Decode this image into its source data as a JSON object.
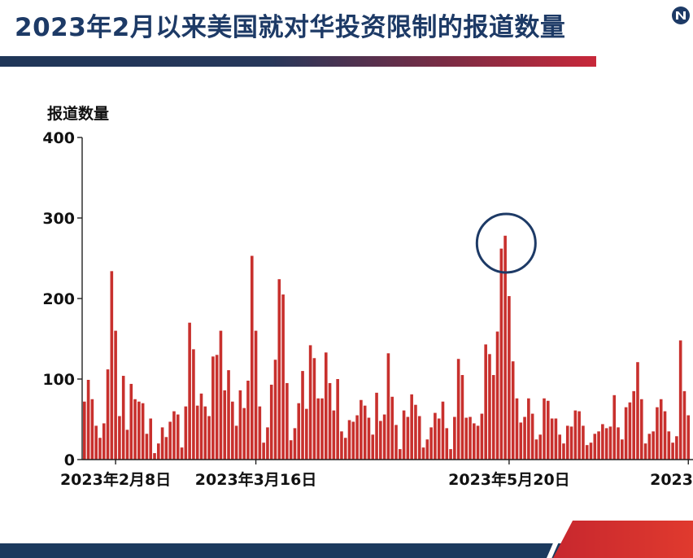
{
  "title": "2023年2月以来美国就对华投资限制的报道数量",
  "colors": {
    "bar": "#c8302d",
    "title": "#1d3a66",
    "circle": "#1d3a66"
  },
  "chart_data": {
    "type": "bar",
    "ylabel": "报道数量",
    "ylim": [
      0,
      400
    ],
    "yticks": [
      0,
      100,
      200,
      300,
      400
    ],
    "xtick_labels": [
      {
        "index": 8,
        "label": "2023年2月8日"
      },
      {
        "index": 44,
        "label": "2023年3月16日"
      },
      {
        "index": 109,
        "label": "2023年5月20日"
      },
      {
        "index": 155,
        "label": "2023"
      }
    ],
    "values": [
      72,
      99,
      75,
      42,
      27,
      45,
      112,
      234,
      160,
      54,
      104,
      37,
      94,
      75,
      72,
      70,
      32,
      51,
      8,
      20,
      40,
      28,
      47,
      60,
      56,
      15,
      66,
      170,
      137,
      67,
      82,
      66,
      54,
      128,
      130,
      160,
      86,
      111,
      72,
      42,
      86,
      64,
      98,
      253,
      160,
      66,
      21,
      40,
      93,
      124,
      224,
      205,
      95,
      24,
      39,
      70,
      110,
      63,
      142,
      126,
      76,
      76,
      133,
      95,
      61,
      100,
      35,
      27,
      49,
      47,
      55,
      74,
      67,
      52,
      31,
      83,
      48,
      56,
      132,
      78,
      43,
      13,
      61,
      53,
      81,
      68,
      54,
      15,
      25,
      40,
      58,
      51,
      72,
      39,
      13,
      53,
      125,
      105,
      52,
      53,
      45,
      42,
      57,
      143,
      131,
      105,
      159,
      262,
      278,
      203,
      122,
      76,
      46,
      53,
      76,
      57,
      25,
      31,
      76,
      73,
      51,
      51,
      31,
      20,
      42,
      41,
      61,
      60,
      42,
      18,
      21,
      32,
      35,
      44,
      39,
      41,
      80,
      40,
      25,
      65,
      71,
      85,
      121,
      75,
      20,
      32,
      35,
      65,
      75,
      60,
      35,
      21,
      29,
      148,
      85,
      55
    ],
    "annotations": [
      {
        "type": "circle",
        "index": 108
      }
    ]
  }
}
